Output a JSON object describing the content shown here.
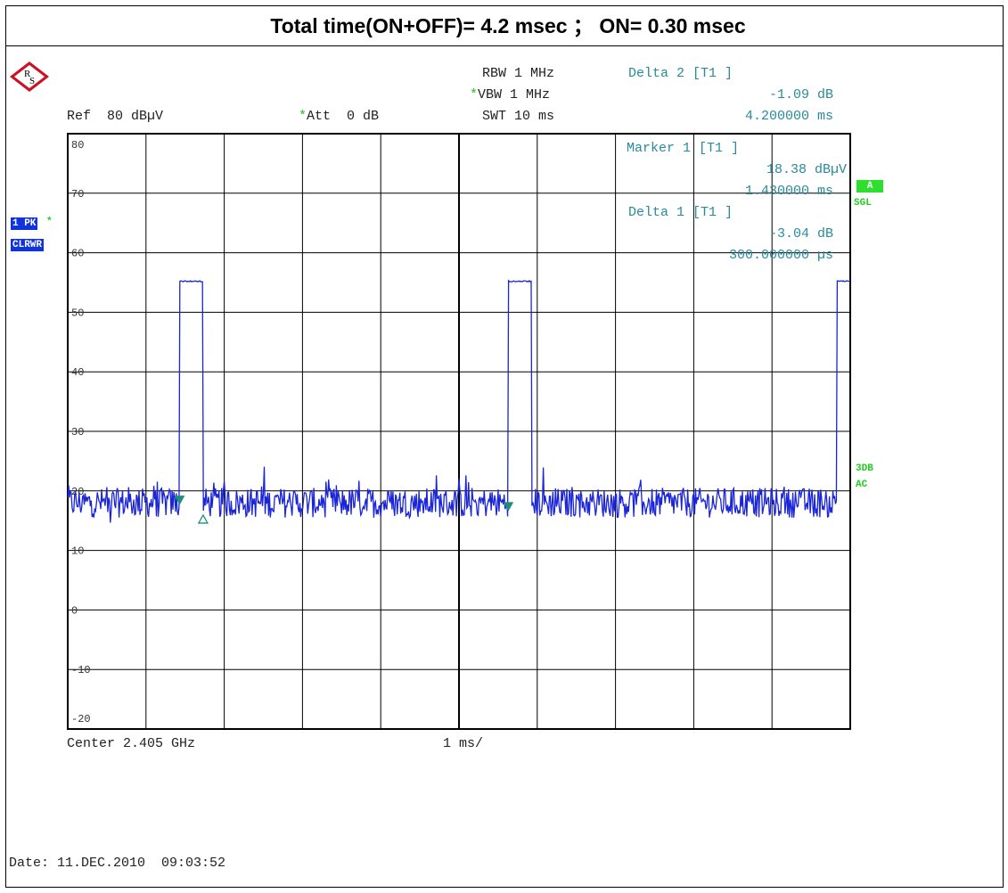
{
  "title": "Total time(ON+OFF)= 4.2 msec ； ON= 0.30 msec",
  "header": {
    "ref": "Ref  80 dBµV",
    "att": "Att  0 dB",
    "rbw": "RBW 1 MHz",
    "vbw": "VBW 1 MHz",
    "swt": "SWT 10 ms"
  },
  "markers": {
    "delta2": {
      "label": "Delta 2 [T1 ]",
      "value": "-1.09 dB",
      "time": "4.200000 ms"
    },
    "marker1": {
      "label": "Marker 1 [T1 ]",
      "value": "18.38 dBµV",
      "time": "1.430000 ms"
    },
    "delta1": {
      "label": "Delta 1 [T1 ]",
      "value": "-3.04 dB",
      "time": "300.000000 µs"
    }
  },
  "side_labels": {
    "trace_mode": "1 PK",
    "clrwr": "CLRWR",
    "a": "A",
    "sgl": "SGL",
    "db3": "3DB",
    "ac": "AC"
  },
  "footer": {
    "center": "Center 2.405 GHz",
    "span": "1 ms/",
    "date": "Date: 11.DEC.2010  09:03:52"
  },
  "colors": {
    "trace": "#1a24d8",
    "marker": "#1f8f7a",
    "grid": "#000000",
    "cyan_text": "#2a8a9a",
    "green": "#22cc22",
    "blue_badge": "#1133dd"
  },
  "chart_data": {
    "type": "line",
    "title": "Total time(ON+OFF)= 4.2 msec ； ON= 0.30 msec",
    "xlabel": "1 ms/",
    "ylabel": "",
    "x_unit": "ms",
    "y_unit": "dBµV",
    "xlim": [
      0,
      10
    ],
    "ylim": [
      -20,
      80
    ],
    "ytick_labels": [
      "80",
      "70",
      "60",
      "50",
      "40",
      "30",
      "20",
      "10",
      "0",
      "-10",
      "-20"
    ],
    "ytick_values": [
      80,
      70,
      60,
      50,
      40,
      30,
      20,
      10,
      0,
      -10,
      -20
    ],
    "noise_floor_dBuV": 18,
    "pulse_level_dBuV": 55.3,
    "pulses": [
      {
        "start_ms": 1.43,
        "end_ms": 1.73
      },
      {
        "start_ms": 5.63,
        "end_ms": 5.93
      },
      {
        "start_ms": 9.83,
        "end_ms": 10.0
      }
    ],
    "marker_points": [
      {
        "id": "1",
        "x_ms": 1.43,
        "y": 18.38
      },
      {
        "id": "delta1",
        "x_ms": 1.73,
        "y": 15.34
      },
      {
        "id": "2",
        "x_ms": 5.63,
        "y": 17.29
      }
    ],
    "grid": true
  }
}
